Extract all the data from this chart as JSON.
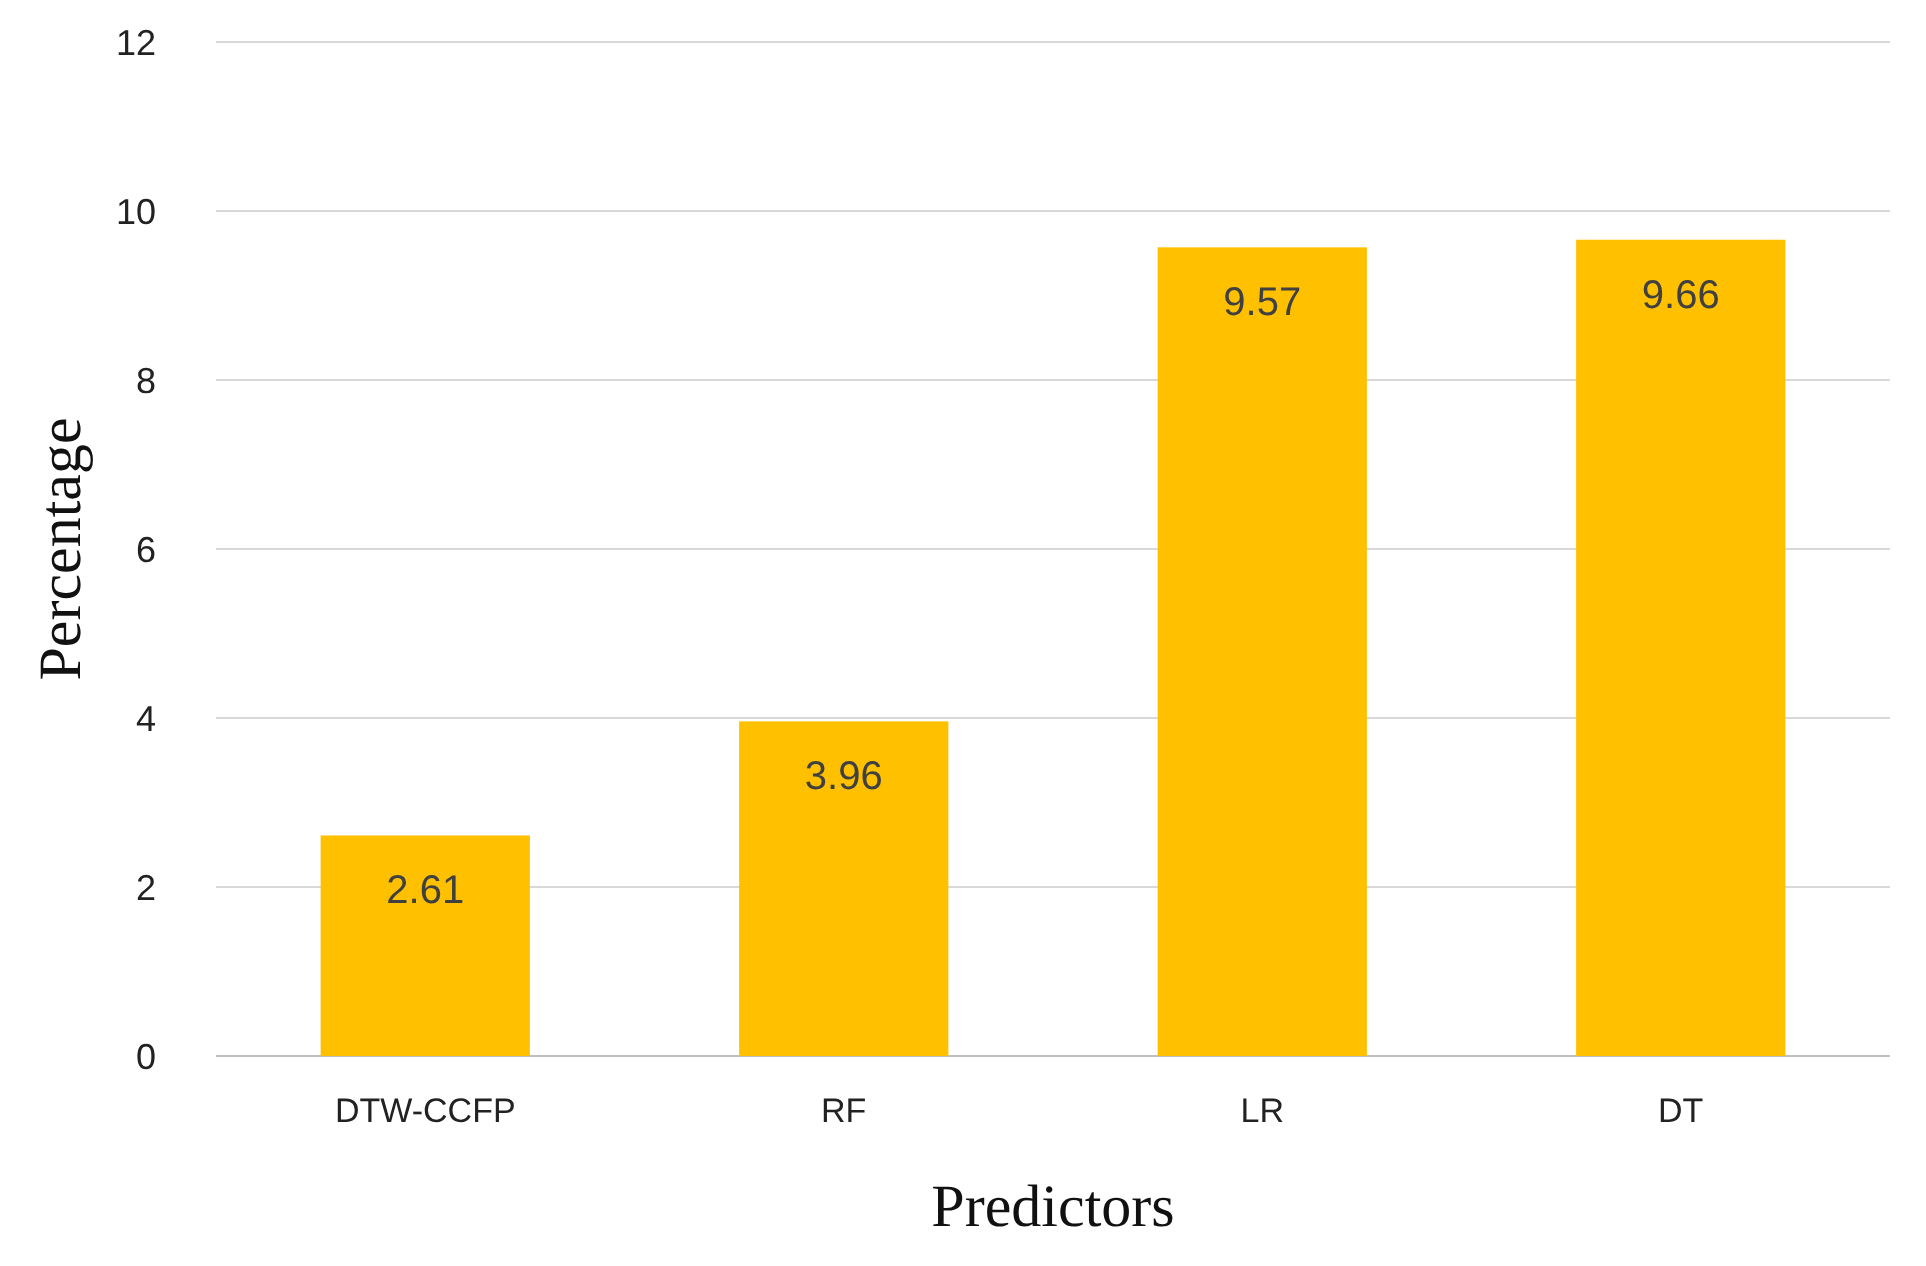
{
  "chart_data": {
    "type": "bar",
    "xlabel": "Predictors",
    "ylabel": "Percentage",
    "categories": [
      "DTW-CCFP",
      "RF",
      "LR",
      "DT"
    ],
    "values": [
      2.61,
      3.96,
      9.57,
      9.66
    ],
    "color": "#ffc000",
    "ylim": [
      0,
      12
    ],
    "yticks": [
      0,
      2,
      4,
      6,
      8,
      10,
      12
    ],
    "grid": "y",
    "data_labels": true
  }
}
